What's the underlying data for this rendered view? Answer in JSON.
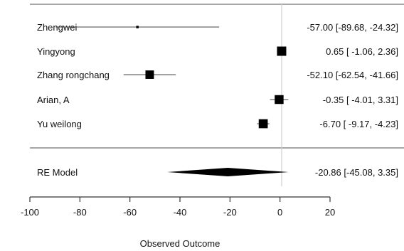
{
  "chart_data": {
    "type": "forest",
    "xlabel": "Observed Outcome",
    "xlim": [
      -100,
      20
    ],
    "xticks": [
      -100,
      -80,
      -60,
      -40,
      -20,
      0,
      20
    ],
    "tick_labels": [
      "-100",
      "-80",
      "-60",
      "-40",
      "-20",
      "0",
      "20"
    ],
    "reference_line": 0,
    "studies": [
      {
        "name": "Zhengwei",
        "estimate": -57.0,
        "lower": -89.68,
        "upper": -24.32,
        "label": "-57.00 [-89.68, -24.32]",
        "weight": 0.1
      },
      {
        "name": "Yingyong",
        "estimate": 0.65,
        "lower": -1.06,
        "upper": 2.36,
        "label": "0.65 [ -1.06,   2.36]",
        "weight": 1.0
      },
      {
        "name": "Zhang rongchang",
        "estimate": -52.1,
        "lower": -62.54,
        "upper": -41.66,
        "label": "-52.10 [-62.54, -41.66]",
        "weight": 0.9
      },
      {
        "name": "Arian, A",
        "estimate": -0.35,
        "lower": -4.01,
        "upper": 3.31,
        "label": "-0.35 [ -4.01,   3.31]",
        "weight": 0.95
      },
      {
        "name": "Yu weilong",
        "estimate": -6.7,
        "lower": -9.17,
        "upper": -4.23,
        "label": "-6.70 [ -9.17,  -4.23]",
        "weight": 0.97
      }
    ],
    "summary": {
      "name": "RE Model",
      "estimate": -20.86,
      "lower": -45.08,
      "upper": 3.35,
      "label": "-20.86 [-45.08,   3.35]"
    }
  }
}
